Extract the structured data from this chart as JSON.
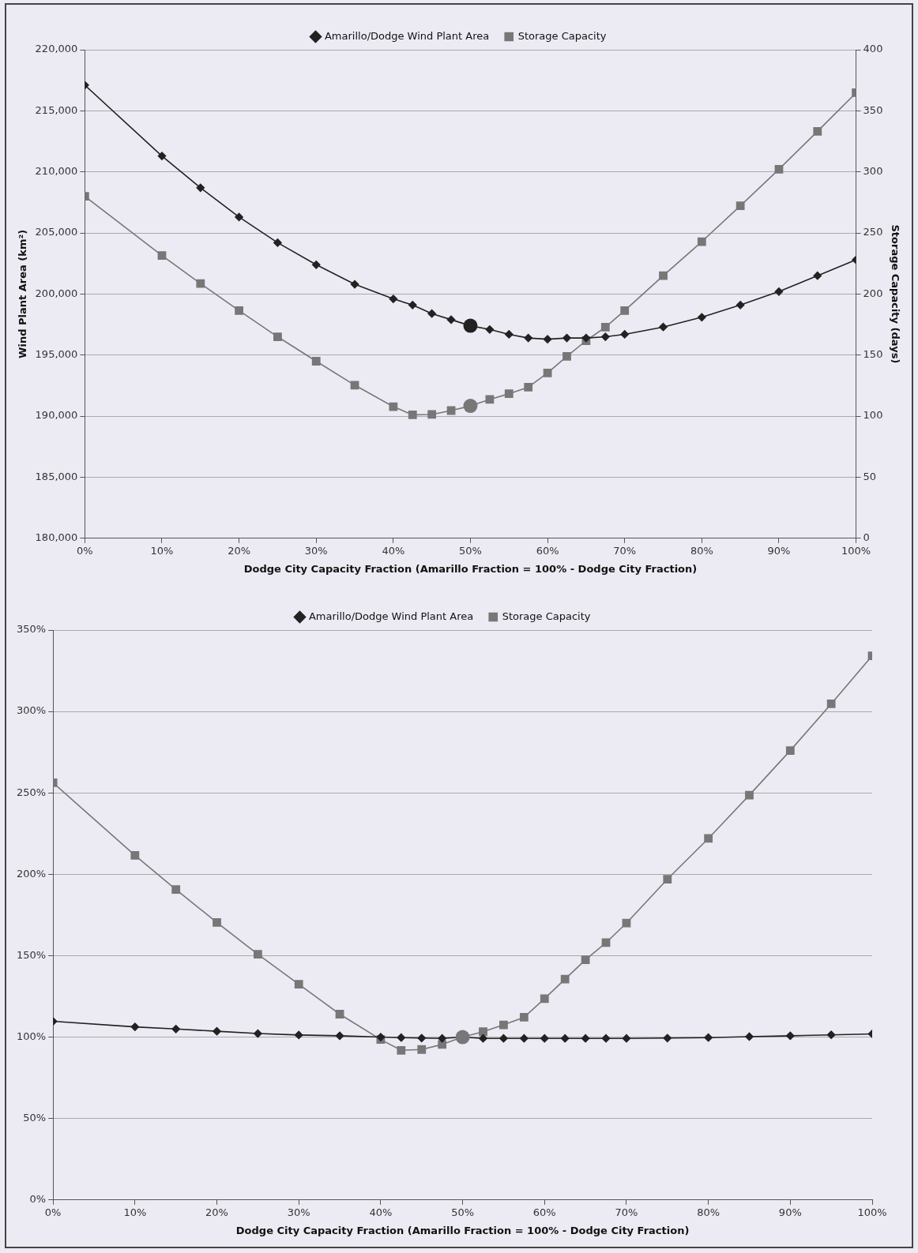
{
  "chart_data": [
    {
      "type": "line",
      "xlabel": "Dodge City Capacity Fraction (Amarillo Fraction = 100% - Dodge City Fraction)",
      "ylabel": "Wind Plant Area (km²)",
      "y2label": "Storage Capacity (days)",
      "x": [
        0,
        10,
        15,
        20,
        25,
        30,
        35,
        40,
        42.5,
        45,
        47.5,
        50,
        52.5,
        55,
        57.5,
        60,
        62.5,
        65,
        67.5,
        70,
        75,
        80,
        85,
        90,
        95,
        100
      ],
      "series": [
        {
          "name": "Amarillo/Dodge Wind Plant Area",
          "color": "#222222",
          "marker": "diamond",
          "values": [
            217100,
            211300,
            208700,
            206300,
            204200,
            202400,
            200800,
            199600,
            199100,
            198400,
            197900,
            197400,
            197100,
            196700,
            196400,
            196300,
            196400,
            196400,
            196500,
            196700,
            197300,
            198100,
            199100,
            200200,
            201500,
            202800
          ]
        },
        {
          "name": "Storage Capacity",
          "color": "#777777",
          "marker": "square",
          "axis": "y2",
          "values": [
            280,
            231.5,
            208.6,
            186.4,
            165,
            145,
            125.4,
            107.8,
            101.1,
            101.4,
            104.6,
            108.4,
            113.7,
            118.4,
            123.7,
            135.4,
            148.9,
            161.8,
            172.9,
            186.4,
            215.1,
            242.9,
            272.2,
            302.1,
            333.2,
            364.8
          ]
        },
        {
          "type": "scatter",
          "color": "#222222",
          "marker": "circle",
          "values": [
            null,
            null,
            null,
            null,
            null,
            null,
            null,
            null,
            null,
            null,
            null,
            197400,
            null,
            null,
            null,
            null,
            null,
            null,
            null,
            null,
            null,
            null,
            null,
            null,
            null,
            null
          ]
        },
        {
          "type": "scatter",
          "color": "#777777",
          "marker": "circle",
          "axis": "y2",
          "values": [
            null,
            null,
            null,
            null,
            null,
            null,
            null,
            null,
            null,
            null,
            null,
            108.4,
            null,
            null,
            null,
            null,
            null,
            null,
            null,
            null,
            null,
            null,
            null,
            null,
            null,
            null
          ]
        }
      ],
      "xlim": [
        0,
        100
      ],
      "xticks": [
        {
          "value": 0,
          "label": "0%"
        },
        {
          "value": 10,
          "label": "10%"
        },
        {
          "value": 20,
          "label": "20%"
        },
        {
          "value": 30,
          "label": "30%"
        },
        {
          "value": 40,
          "label": "40%"
        },
        {
          "value": 50,
          "label": "50%"
        },
        {
          "value": 60,
          "label": "60%"
        },
        {
          "value": 70,
          "label": "70%"
        },
        {
          "value": 80,
          "label": "80%"
        },
        {
          "value": 90,
          "label": "90%"
        },
        {
          "value": 100,
          "label": "100%"
        }
      ],
      "ylim": [
        180000,
        220000
      ],
      "yticks": [
        {
          "value": 180000,
          "label": "180,000"
        },
        {
          "value": 185000,
          "label": "185,000"
        },
        {
          "value": 190000,
          "label": "190,000"
        },
        {
          "value": 195000,
          "label": "195,000"
        },
        {
          "value": 200000,
          "label": "200,000"
        },
        {
          "value": 205000,
          "label": "205,000"
        },
        {
          "value": 210000,
          "label": "210,000"
        },
        {
          "value": 215000,
          "label": "215,000"
        },
        {
          "value": 220000,
          "label": "220,000"
        }
      ],
      "y2lim": [
        0,
        400
      ],
      "y2ticks": [
        0,
        50,
        100,
        150,
        200,
        250,
        300,
        350,
        400
      ],
      "grid": "y",
      "legend": "top",
      "line_style": "solid"
    },
    {
      "type": "line",
      "xlabel": "Dodge City Capacity Fraction (Amarillo Fraction = 100% - Dodge City Fraction)",
      "x": [
        0,
        10,
        15,
        20,
        25,
        30,
        35,
        40,
        42.5,
        45,
        47.5,
        50,
        52.5,
        55,
        57.5,
        60,
        62.5,
        65,
        67.5,
        70,
        75,
        80,
        85,
        90,
        95,
        100
      ],
      "series": [
        {
          "name": "Amarillo/Dodge Wind Plant Area",
          "color": "#222222",
          "marker": "diamond",
          "values": [
            109.7,
            106.3,
            105,
            103.6,
            102.2,
            101.3,
            100.8,
            100,
            99.7,
            99.4,
            99.2,
            100,
            99.2,
            99.2,
            99.2,
            99.2,
            99.2,
            99.2,
            99.2,
            99.2,
            99.4,
            99.7,
            100.3,
            100.8,
            101.4,
            102
          ]
        },
        {
          "name": "Storage Capacity",
          "color": "#777777",
          "marker": "square",
          "values": [
            256.2,
            211.6,
            190.7,
            170.4,
            150.9,
            132.5,
            114.1,
            98.5,
            91.9,
            92.4,
            95.5,
            100,
            103.3,
            107.5,
            112.2,
            123.6,
            135.6,
            147.5,
            158,
            170,
            197,
            222,
            248.6,
            276,
            304.7,
            334.2
          ]
        },
        {
          "type": "scatter",
          "color": "#777777",
          "marker": "circle",
          "values": [
            null,
            null,
            null,
            null,
            null,
            null,
            null,
            null,
            null,
            null,
            null,
            100,
            null,
            null,
            null,
            null,
            null,
            null,
            null,
            null,
            null,
            null,
            null,
            null,
            null,
            null
          ]
        }
      ],
      "xlim": [
        0,
        100
      ],
      "xticks": [
        {
          "value": 0,
          "label": "0%"
        },
        {
          "value": 10,
          "label": "10%"
        },
        {
          "value": 20,
          "label": "20%"
        },
        {
          "value": 30,
          "label": "30%"
        },
        {
          "value": 40,
          "label": "40%"
        },
        {
          "value": 50,
          "label": "50%"
        },
        {
          "value": 60,
          "label": "60%"
        },
        {
          "value": 70,
          "label": "70%"
        },
        {
          "value": 80,
          "label": "80%"
        },
        {
          "value": 90,
          "label": "90%"
        },
        {
          "value": 100,
          "label": "100%"
        }
      ],
      "ylim": [
        0,
        350
      ],
      "yticks": [
        {
          "value": 0,
          "label": "0%"
        },
        {
          "value": 50,
          "label": "50%"
        },
        {
          "value": 100,
          "label": "100%"
        },
        {
          "value": 150,
          "label": "150%"
        },
        {
          "value": 200,
          "label": "200%"
        },
        {
          "value": 250,
          "label": "250%"
        },
        {
          "value": 300,
          "label": "300%"
        },
        {
          "value": 350,
          "label": "350%"
        }
      ],
      "grid": "y",
      "legend": "top",
      "line_style": "solid"
    }
  ]
}
